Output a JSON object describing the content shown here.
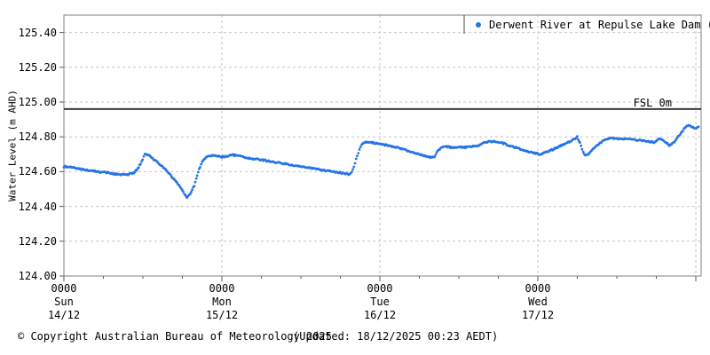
{
  "colors": {
    "series": "#2474e8",
    "grid": "#c6c6c6",
    "plot_border": "#808080",
    "tick": "#555555",
    "reference_line": "#3a3a3a",
    "text": "#000000",
    "background": "#ffffff"
  },
  "footer": {
    "copyright": "© Copyright Australian Bureau of Meteorology 2025",
    "updated": "(Updated: 18/12/2025 00:23 AEDT)"
  },
  "chart_data": {
    "type": "line",
    "title": "",
    "y_axis": {
      "label": "Water Level (m AHD)",
      "min": 124.0,
      "max": 125.5,
      "tick_step": 0.2,
      "ticks": [
        "124.00",
        "124.20",
        "124.40",
        "124.60",
        "124.80",
        "125.00",
        "125.20",
        "125.40"
      ]
    },
    "x_axis": {
      "unit": "hours from 14/12 0000",
      "span_hours": 96.8,
      "major_tick_every_hours": 24,
      "minor_tick_every_hours": 6,
      "grid": true,
      "day_labels": [
        {
          "time": "0000",
          "day": "Sun",
          "date": "14/12",
          "hour": 0
        },
        {
          "time": "0000",
          "day": "Mon",
          "date": "15/12",
          "hour": 24
        },
        {
          "time": "0000",
          "day": "Tue",
          "date": "16/12",
          "hour": 48
        },
        {
          "time": "0000",
          "day": "Wed",
          "date": "17/12",
          "hour": 72
        }
      ]
    },
    "reference_line": {
      "label": "FSL 0m",
      "value": 124.96
    },
    "legend": {
      "position": "top-right",
      "marker": "dot",
      "label": "Derwent River at Repulse Lake Dam (595032)"
    },
    "series": [
      {
        "name": "Derwent River at Repulse Lake Dam (595032)",
        "color": "#2474e8",
        "points": [
          [
            0,
            124.63
          ],
          [
            1,
            124.625
          ],
          [
            2,
            124.62
          ],
          [
            3.5,
            124.61
          ],
          [
            5,
            124.6
          ],
          [
            6.5,
            124.595
          ],
          [
            8,
            124.585
          ],
          [
            9.5,
            124.583
          ],
          [
            10.5,
            124.59
          ],
          [
            11.2,
            124.615
          ],
          [
            11.8,
            124.655
          ],
          [
            12.3,
            124.7
          ],
          [
            12.8,
            124.695
          ],
          [
            13.5,
            124.675
          ],
          [
            14.5,
            124.645
          ],
          [
            15.5,
            124.61
          ],
          [
            16.5,
            124.565
          ],
          [
            17.5,
            124.52
          ],
          [
            18.3,
            124.47
          ],
          [
            18.7,
            124.452
          ],
          [
            19.2,
            124.47
          ],
          [
            19.8,
            124.52
          ],
          [
            20.4,
            124.6
          ],
          [
            21,
            124.655
          ],
          [
            21.6,
            124.685
          ],
          [
            22.3,
            124.693
          ],
          [
            23.2,
            124.69
          ],
          [
            24,
            124.685
          ],
          [
            25,
            124.69
          ],
          [
            25.6,
            124.697
          ],
          [
            26.5,
            124.69
          ],
          [
            28,
            124.678
          ],
          [
            30,
            124.668
          ],
          [
            32,
            124.655
          ],
          [
            34,
            124.642
          ],
          [
            36,
            124.63
          ],
          [
            38,
            124.617
          ],
          [
            40,
            124.605
          ],
          [
            41.5,
            124.597
          ],
          [
            42.8,
            124.588
          ],
          [
            43.4,
            124.585
          ],
          [
            43.9,
            124.61
          ],
          [
            44.4,
            124.67
          ],
          [
            44.9,
            124.73
          ],
          [
            45.4,
            124.765
          ],
          [
            46,
            124.772
          ],
          [
            47,
            124.765
          ],
          [
            48,
            124.757
          ],
          [
            49.5,
            124.75
          ],
          [
            51,
            124.735
          ],
          [
            52.5,
            124.718
          ],
          [
            54,
            124.7
          ],
          [
            55,
            124.69
          ],
          [
            55.8,
            124.682
          ],
          [
            56.3,
            124.685
          ],
          [
            56.8,
            124.72
          ],
          [
            57.4,
            124.74
          ],
          [
            58,
            124.745
          ],
          [
            59,
            124.738
          ],
          [
            60,
            124.742
          ],
          [
            61,
            124.74
          ],
          [
            62,
            124.745
          ],
          [
            63,
            124.75
          ],
          [
            63.8,
            124.765
          ],
          [
            64.5,
            124.772
          ],
          [
            65.5,
            124.775
          ],
          [
            66.3,
            124.768
          ],
          [
            67.3,
            124.755
          ],
          [
            68.5,
            124.74
          ],
          [
            70,
            124.722
          ],
          [
            71.2,
            124.71
          ],
          [
            72.3,
            124.7
          ],
          [
            73.5,
            124.715
          ],
          [
            75,
            124.74
          ],
          [
            76.3,
            124.762
          ],
          [
            77.4,
            124.785
          ],
          [
            78,
            124.8
          ],
          [
            78.4,
            124.765
          ],
          [
            78.9,
            124.71
          ],
          [
            79.3,
            124.692
          ],
          [
            79.9,
            124.71
          ],
          [
            80.7,
            124.74
          ],
          [
            81.5,
            124.765
          ],
          [
            82.3,
            124.785
          ],
          [
            83,
            124.793
          ],
          [
            84,
            124.79
          ],
          [
            85.5,
            124.787
          ],
          [
            87,
            124.782
          ],
          [
            88.5,
            124.775
          ],
          [
            89.8,
            124.768
          ],
          [
            90.5,
            124.79
          ],
          [
            91.4,
            124.772
          ],
          [
            92,
            124.752
          ],
          [
            92.6,
            124.765
          ],
          [
            93.3,
            124.8
          ],
          [
            94.2,
            124.845
          ],
          [
            94.9,
            124.868
          ],
          [
            95.4,
            124.855
          ],
          [
            95.9,
            124.848
          ],
          [
            96.4,
            124.858
          ]
        ]
      }
    ]
  }
}
